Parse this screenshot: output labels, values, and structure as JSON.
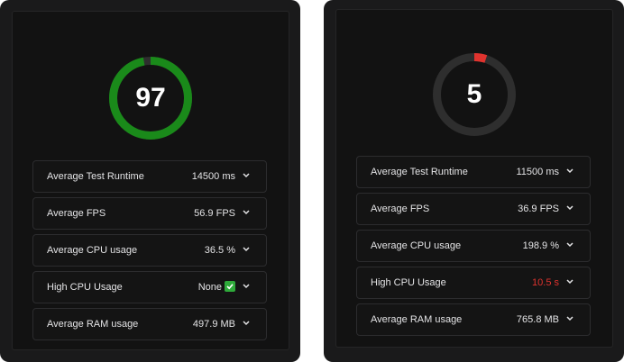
{
  "colors": {
    "good": "#1a8a1a",
    "bad": "#e0332e",
    "track": "#2e2e2e"
  },
  "left_panel": {
    "score": "97",
    "score_fraction": 0.97,
    "metrics": [
      {
        "label": "Average Test Runtime",
        "value": "14500 ms"
      },
      {
        "label": "Average FPS",
        "value": "56.9 FPS"
      },
      {
        "label": "Average CPU usage",
        "value": "36.5 %"
      },
      {
        "label": "High CPU Usage",
        "value": "None",
        "icon": "check-icon"
      },
      {
        "label": "Average RAM usage",
        "value": "497.9 MB"
      }
    ]
  },
  "right_panel": {
    "score": "5",
    "score_fraction": 0.05,
    "metrics": [
      {
        "label": "Average Test Runtime",
        "value": "11500 ms"
      },
      {
        "label": "Average FPS",
        "value": "36.9 FPS"
      },
      {
        "label": "Average CPU usage",
        "value": "198.9 %"
      },
      {
        "label": "High CPU Usage",
        "value": "10.5 s",
        "status": "alert"
      },
      {
        "label": "Average RAM usage",
        "value": "765.8 MB"
      }
    ]
  }
}
